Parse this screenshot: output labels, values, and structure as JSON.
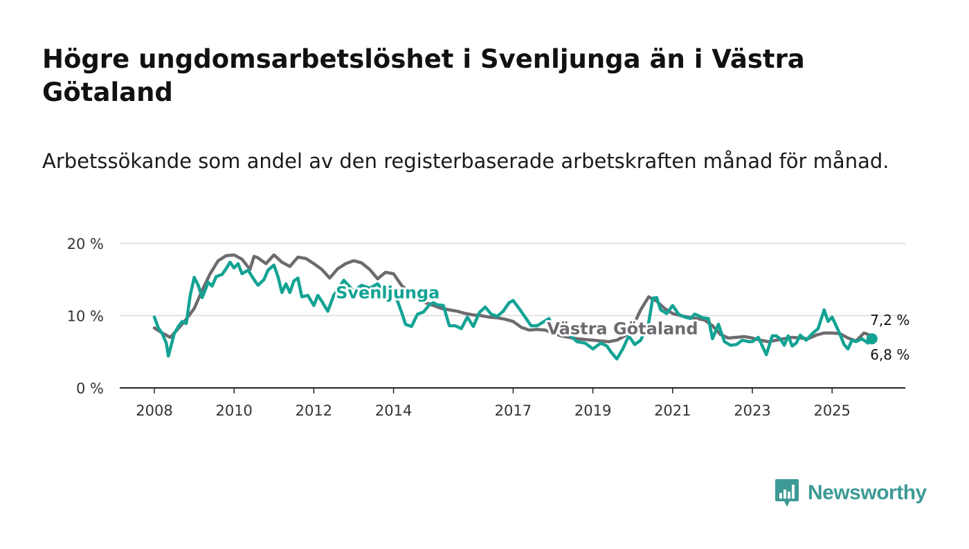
{
  "header": {
    "title": "Högre ungdomsarbetslöshet i Svenljunga än i Västra Götaland",
    "subtitle": "Arbetssökande som andel av den registerbaserade arbetskraften månad för månad."
  },
  "brand": {
    "name": "Newsworthy",
    "color": "#3d9a95",
    "icon": "newsworthy-logo-icon"
  },
  "chart_data": {
    "type": "line",
    "title": "Högre ungdomsarbetslöshet i Svenljunga än i Västra Götaland",
    "xlabel": "",
    "ylabel": "",
    "ylim": [
      0,
      20
    ],
    "xlim": [
      2008.0,
      2026.2
    ],
    "y_ticks": [
      {
        "value": 0,
        "label": "0 %"
      },
      {
        "value": 10,
        "label": "10 %"
      },
      {
        "value": 20,
        "label": "20 %"
      }
    ],
    "x_ticks": [
      {
        "value": 2008,
        "label": "2008"
      },
      {
        "value": 2010,
        "label": "2010"
      },
      {
        "value": 2012,
        "label": "2012"
      },
      {
        "value": 2014,
        "label": "2014"
      },
      {
        "value": 2017,
        "label": "2017"
      },
      {
        "value": 2019,
        "label": "2019"
      },
      {
        "value": 2021,
        "label": "2021"
      },
      {
        "value": 2023,
        "label": "2023"
      },
      {
        "value": 2025,
        "label": "2025"
      }
    ],
    "grid": true,
    "series": [
      {
        "name": "Västra Götaland",
        "color": "#6e6a6f",
        "end_label": "7,2 %",
        "x": [
          2008.0,
          2008.2,
          2008.4,
          2008.6,
          2008.8,
          2009.0,
          2009.2,
          2009.4,
          2009.6,
          2009.8,
          2010.0,
          2010.2,
          2010.4,
          2010.5,
          2010.6,
          2010.8,
          2011.0,
          2011.2,
          2011.4,
          2011.6,
          2011.8,
          2012.0,
          2012.2,
          2012.4,
          2012.6,
          2012.8,
          2013.0,
          2013.2,
          2013.4,
          2013.6,
          2013.8,
          2014.0,
          2014.2,
          2014.4,
          2014.6,
          2014.8,
          2015.0,
          2015.2,
          2015.4,
          2015.6,
          2015.8,
          2016.0,
          2016.2,
          2016.4,
          2016.6,
          2016.8,
          2017.0,
          2017.2,
          2017.4,
          2017.6,
          2017.8,
          2018.0,
          2018.2,
          2018.4,
          2018.6,
          2018.8,
          2019.0,
          2019.2,
          2019.4,
          2019.6,
          2019.8,
          2020.0,
          2020.2,
          2020.4,
          2020.6,
          2020.8,
          2021.0,
          2021.2,
          2021.4,
          2021.6,
          2021.8,
          2022.0,
          2022.2,
          2022.4,
          2022.6,
          2022.8,
          2023.0,
          2023.2,
          2023.4,
          2023.6,
          2023.8,
          2024.0,
          2024.2,
          2024.4,
          2024.6,
          2024.8,
          2025.0,
          2025.2,
          2025.4,
          2025.6,
          2025.8,
          2026.0
        ],
        "values": [
          8.3,
          7.6,
          7.0,
          8.2,
          9.5,
          11.0,
          13.5,
          15.8,
          17.6,
          18.3,
          18.4,
          17.8,
          16.4,
          18.2,
          18.0,
          17.2,
          18.4,
          17.4,
          16.8,
          18.1,
          17.9,
          17.2,
          16.4,
          15.2,
          16.5,
          17.2,
          17.6,
          17.3,
          16.4,
          15.1,
          16.0,
          15.8,
          14.2,
          13.2,
          12.3,
          11.8,
          11.4,
          11.0,
          10.8,
          10.6,
          10.3,
          10.1,
          10.0,
          9.8,
          9.7,
          9.5,
          9.2,
          8.4,
          8.0,
          8.1,
          8.0,
          7.6,
          7.2,
          7.0,
          6.8,
          6.7,
          6.6,
          6.5,
          6.4,
          6.6,
          7.2,
          8.5,
          10.8,
          12.6,
          12.0,
          11.0,
          10.3,
          10.0,
          9.8,
          9.6,
          9.4,
          8.6,
          7.4,
          6.9,
          7.0,
          7.1,
          6.9,
          6.6,
          6.4,
          6.6,
          6.8,
          7.0,
          6.9,
          6.8,
          7.3,
          7.6,
          7.6,
          7.5,
          6.9,
          6.5,
          7.6,
          7.2
        ]
      },
      {
        "name": "Svenljunga",
        "color": "#13a394",
        "end_label": "6,8 %",
        "x": [
          2008.0,
          2008.1,
          2008.2,
          2008.3,
          2008.35,
          2008.5,
          2008.6,
          2008.7,
          2008.8,
          2008.9,
          2009.0,
          2009.1,
          2009.2,
          2009.35,
          2009.45,
          2009.55,
          2009.7,
          2009.8,
          2009.9,
          2010.0,
          2010.1,
          2010.2,
          2010.35,
          2010.5,
          2010.6,
          2010.75,
          2010.85,
          2011.0,
          2011.1,
          2011.2,
          2011.3,
          2011.4,
          2011.5,
          2011.6,
          2011.7,
          2011.85,
          2012.0,
          2012.1,
          2012.2,
          2012.35,
          2012.5,
          2012.6,
          2012.75,
          2012.9,
          2013.0,
          2013.2,
          2013.4,
          2013.6,
          2013.8,
          2014.0,
          2014.1,
          2014.2,
          2014.3,
          2014.45,
          2014.6,
          2014.75,
          2014.9,
          2015.0,
          2015.1,
          2015.25,
          2015.4,
          2015.55,
          2015.7,
          2015.85,
          2016.0,
          2016.15,
          2016.3,
          2016.45,
          2016.6,
          2016.75,
          2016.9,
          2017.0,
          2017.15,
          2017.3,
          2017.45,
          2017.6,
          2017.75,
          2017.9,
          2018.0,
          2018.2,
          2018.4,
          2018.6,
          2018.8,
          2019.0,
          2019.2,
          2019.35,
          2019.45,
          2019.6,
          2019.75,
          2019.9,
          2020.05,
          2020.2,
          2020.3,
          2020.4,
          2020.5,
          2020.6,
          2020.7,
          2020.85,
          2021.0,
          2021.15,
          2021.3,
          2021.45,
          2021.55,
          2021.65,
          2021.75,
          2021.9,
          2022.0,
          2022.15,
          2022.3,
          2022.45,
          2022.6,
          2022.75,
          2022.9,
          2023.0,
          2023.15,
          2023.25,
          2023.35,
          2023.5,
          2023.6,
          2023.7,
          2023.8,
          2023.9,
          2024.0,
          2024.1,
          2024.2,
          2024.35,
          2024.5,
          2024.65,
          2024.8,
          2024.9,
          2025.0,
          2025.1,
          2025.2,
          2025.3,
          2025.4,
          2025.5,
          2025.6,
          2025.75,
          2025.9,
          2026.0
        ],
        "values": [
          9.8,
          8.3,
          7.5,
          6.2,
          4.4,
          7.5,
          8.5,
          9.2,
          8.9,
          12.8,
          15.3,
          14.2,
          12.5,
          14.6,
          14.1,
          15.4,
          15.7,
          16.5,
          17.4,
          16.6,
          17.2,
          15.8,
          16.3,
          15.0,
          14.2,
          15.0,
          16.3,
          17.0,
          15.4,
          13.2,
          14.4,
          13.2,
          14.8,
          15.2,
          12.6,
          12.8,
          11.4,
          12.8,
          12.0,
          10.6,
          12.8,
          13.6,
          14.9,
          14.0,
          13.4,
          14.2,
          13.8,
          14.4,
          13.0,
          12.8,
          12.0,
          10.5,
          8.8,
          8.5,
          10.2,
          10.5,
          11.5,
          11.8,
          11.5,
          11.4,
          8.6,
          8.6,
          8.2,
          9.8,
          8.5,
          10.4,
          11.2,
          10.2,
          9.9,
          10.6,
          11.8,
          12.1,
          11.0,
          9.8,
          8.6,
          8.6,
          9.1,
          9.6,
          8.4,
          8.0,
          7.4,
          6.4,
          6.2,
          5.4,
          6.2,
          5.8,
          5.0,
          4.0,
          5.4,
          7.2,
          6.0,
          6.6,
          7.8,
          9.0,
          12.4,
          12.5,
          10.8,
          10.3,
          11.4,
          10.2,
          9.8,
          9.6,
          10.2,
          10.0,
          9.7,
          9.6,
          6.8,
          8.8,
          6.4,
          5.9,
          6.0,
          6.6,
          6.4,
          6.4,
          7.0,
          5.8,
          4.6,
          7.2,
          7.2,
          6.8,
          5.9,
          7.2,
          5.8,
          6.2,
          7.3,
          6.6,
          7.5,
          8.2,
          10.8,
          9.2,
          9.8,
          8.6,
          7.4,
          6.0,
          5.4,
          6.6,
          6.4,
          6.8,
          6.2,
          6.8
        ]
      }
    ],
    "series_labels": [
      {
        "series": "Svenljunga",
        "text": "Svenljunga"
      },
      {
        "series": "Västra Götaland",
        "text": "Västra Götaland"
      }
    ]
  }
}
